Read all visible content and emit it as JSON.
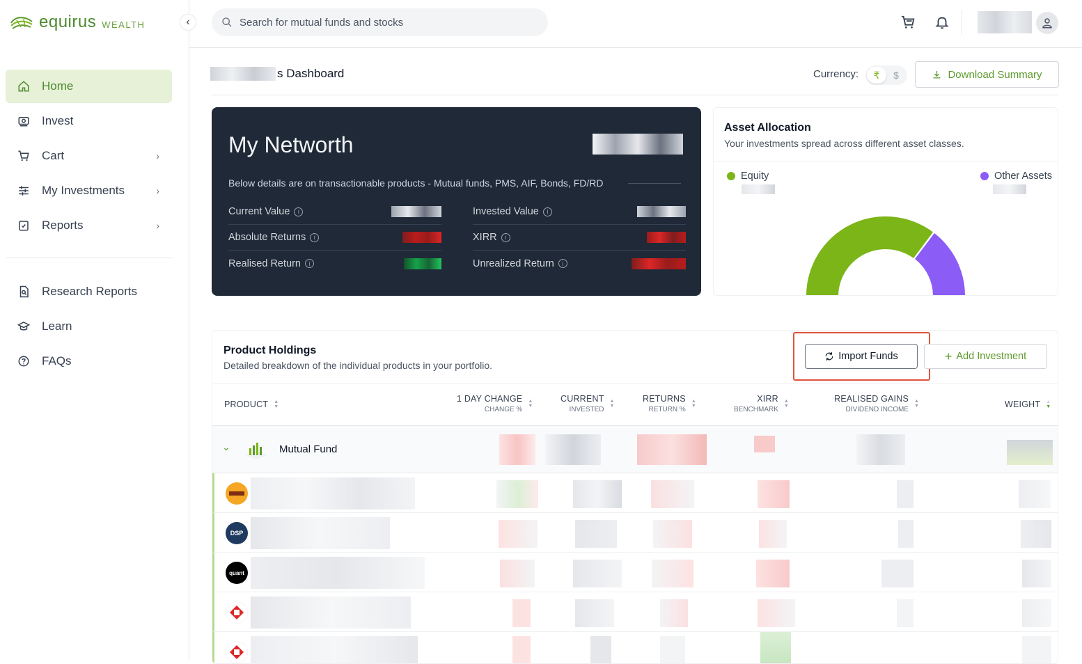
{
  "brand": {
    "name": "equirus",
    "suffix": "WEALTH"
  },
  "search": {
    "placeholder": "Search for mutual funds and stocks"
  },
  "sidebar": {
    "items": [
      {
        "label": "Home",
        "icon": "home-icon",
        "active": true
      },
      {
        "label": "Invest",
        "icon": "invest-icon"
      },
      {
        "label": "Cart",
        "icon": "cart-icon",
        "chevron": true
      },
      {
        "label": "My Investments",
        "icon": "sliders-icon",
        "chevron": true
      },
      {
        "label": "Reports",
        "icon": "report-icon",
        "chevron": true
      }
    ],
    "secondary": [
      {
        "label": "Research Reports",
        "icon": "document-search-icon"
      },
      {
        "label": "Learn",
        "icon": "graduation-cap-icon"
      },
      {
        "label": "FAQs",
        "icon": "help-circle-icon"
      }
    ]
  },
  "dashboard": {
    "title_suffix": "s Dashboard",
    "currency_label": "Currency:",
    "currency_options": [
      "₹",
      "$"
    ],
    "download_label": "Download Summary"
  },
  "networth": {
    "title": "My Networth",
    "note": "Below details are on transactionable products - Mutual funds, PMS, AIF, Bonds, FD/RD",
    "left": [
      {
        "label": "Current Value"
      },
      {
        "label": "Absolute Returns"
      },
      {
        "label": "Realised Return"
      }
    ],
    "right": [
      {
        "label": "Invested Value"
      },
      {
        "label": "XIRR"
      },
      {
        "label": "Unrealized Return"
      }
    ]
  },
  "asset_allocation": {
    "title": "Asset Allocation",
    "subtitle": "Your investments spread across different asset classes.",
    "legend": [
      {
        "name": "Equity",
        "color": "#7cb518"
      },
      {
        "name": "Other Assets",
        "color": "#8b5cf6"
      }
    ]
  },
  "holdings": {
    "title": "Product Holdings",
    "subtitle": "Detailed breakdown of the individual products in your portfolio.",
    "import_label": "Import Funds",
    "add_label": "Add Investment",
    "columns": [
      {
        "l1": "PRODUCT",
        "l2": ""
      },
      {
        "l1": "1 DAY CHANGE",
        "l2": "CHANGE %"
      },
      {
        "l1": "CURRENT",
        "l2": "INVESTED"
      },
      {
        "l1": "RETURNS",
        "l2": "RETURN %"
      },
      {
        "l1": "XIRR",
        "l2": "BENCHMARK"
      },
      {
        "l1": "REALISED GAINS",
        "l2": "DIVIDEND INCOME"
      },
      {
        "l1": "WEIGHT",
        "l2": ""
      }
    ],
    "group_label": "Mutual Fund",
    "fund_logos": [
      {
        "text": "",
        "bg": "#f5a623"
      },
      {
        "text": "DSP",
        "bg": "#1f3a5f"
      },
      {
        "text": "quant",
        "bg": "#000000"
      },
      {
        "text": "",
        "bg": "#ffffff"
      },
      {
        "text": "",
        "bg": "#ffffff"
      }
    ]
  }
}
